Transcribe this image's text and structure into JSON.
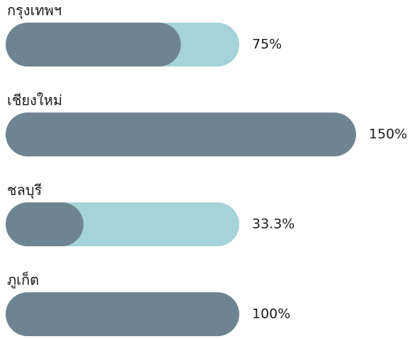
{
  "chart_data": {
    "type": "progress",
    "categories": [
      "กรุงเทพฯ",
      "เชียงใหม่",
      "ชลบุรี",
      "ภูเก็ต"
    ],
    "values": [
      75,
      150,
      33.3,
      100
    ],
    "value_labels": [
      "75%",
      "150%",
      "33.3%",
      "100%"
    ],
    "color": "#6e8491",
    "track_color": "#a5d3d7"
  }
}
